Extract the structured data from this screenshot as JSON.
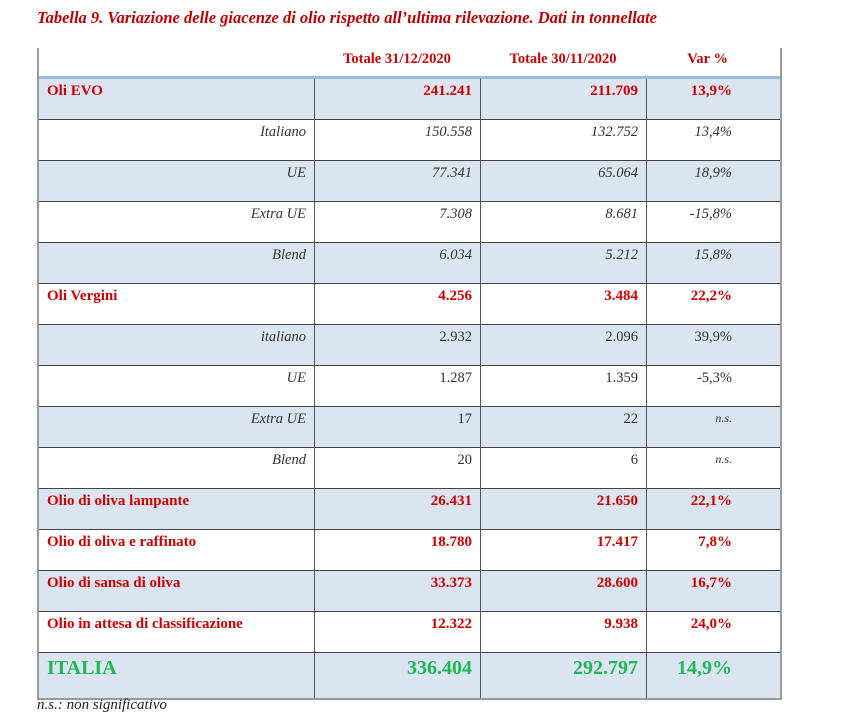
{
  "title": "Tabella 9. Variazione delle giacenze di olio rispetto all’ultima rilevazione. Dati in tonnellate",
  "headers": [
    "",
    "Totale 31/12/2020",
    "Totale 30/11/2020",
    "Var %"
  ],
  "rows": [
    {
      "label": "Oli EVO",
      "v1": "241.241",
      "v2": "211.709",
      "var": "13,9%",
      "type": "main"
    },
    {
      "label": "Italiano",
      "v1": "150.558",
      "v2": "132.752",
      "var": "13,4%",
      "type": "sub-it"
    },
    {
      "label": "UE",
      "v1": "77.341",
      "v2": "65.064",
      "var": "18,9%",
      "type": "sub-it"
    },
    {
      "label": "Extra UE",
      "v1": "7.308",
      "v2": "8.681",
      "var": "-15,8%",
      "type": "sub-it"
    },
    {
      "label": "Blend",
      "v1": "6.034",
      "v2": "5.212",
      "var": "15,8%",
      "type": "sub-it"
    },
    {
      "label": "Oli Vergini",
      "v1": "4.256",
      "v2": "3.484",
      "var": "22,2%",
      "type": "main"
    },
    {
      "label": "italiano",
      "v1": "2.932",
      "v2": "2.096",
      "var": "39,9%",
      "type": "sub"
    },
    {
      "label": "UE",
      "v1": "1.287",
      "v2": "1.359",
      "var": "-5,3%",
      "type": "sub"
    },
    {
      "label": "Extra UE",
      "v1": "17",
      "v2": "22",
      "var": "n.s.",
      "type": "sub"
    },
    {
      "label": "Blend",
      "v1": "20",
      "v2": "6",
      "var": "n.s.",
      "type": "sub"
    },
    {
      "label": "Olio di oliva lampante",
      "v1": "26.431",
      "v2": "21.650",
      "var": "22,1%",
      "type": "main"
    },
    {
      "label": "Olio di oliva e raffinato",
      "v1": "18.780",
      "v2": "17.417",
      "var": "7,8%",
      "type": "main"
    },
    {
      "label": "Olio di sansa di oliva",
      "v1": "33.373",
      "v2": "28.600",
      "var": "16,7%",
      "type": "main"
    },
    {
      "label": "Olio in attesa di classificazione",
      "v1": "12.322",
      "v2": "9.938",
      "var": "24,0%",
      "type": "main"
    },
    {
      "label": "ITALIA",
      "v1": "336.404",
      "v2": "292.797",
      "var": "14,9%",
      "type": "tot"
    }
  ],
  "note": "n.s.: non significativo",
  "colors": {
    "red": "#d00000",
    "green": "#1db954",
    "blue": "#dbe5f1"
  }
}
